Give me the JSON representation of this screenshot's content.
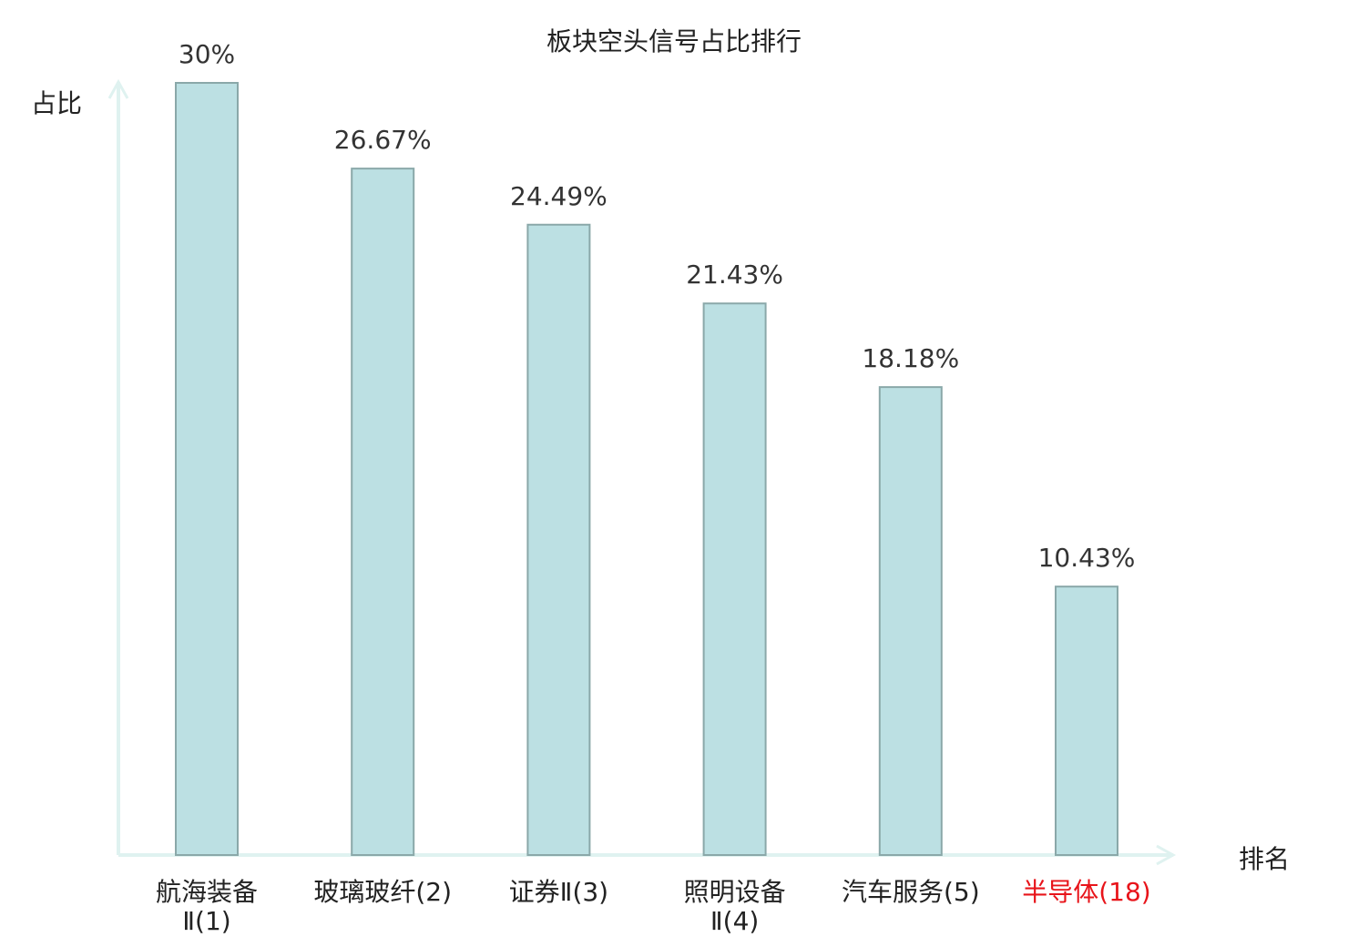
{
  "chart_data": {
    "type": "bar",
    "title": "板块空头信号占比排行",
    "ylabel": "占比",
    "xlabel": "排名",
    "categories": [
      "航海装备Ⅱ(1)",
      "玻璃玻纤(2)",
      "证券Ⅱ(3)",
      "照明设备Ⅱ(4)",
      "汽车服务(5)",
      "半导体(18)"
    ],
    "values": [
      30,
      26.67,
      24.49,
      21.43,
      18.18,
      10.43
    ],
    "value_labels": [
      "30%",
      "26.67%",
      "24.49%",
      "21.43%",
      "18.18%",
      "10.43%"
    ],
    "ylim": [
      0,
      30
    ],
    "grid": false,
    "highlight_category": "半导体(18)",
    "colors": {
      "bar_fill": "#bce0e3",
      "bar_stroke": "#8aa8a9",
      "axis": "#dff2f0",
      "highlight_text": "#e8141a",
      "text": "#222222"
    }
  }
}
